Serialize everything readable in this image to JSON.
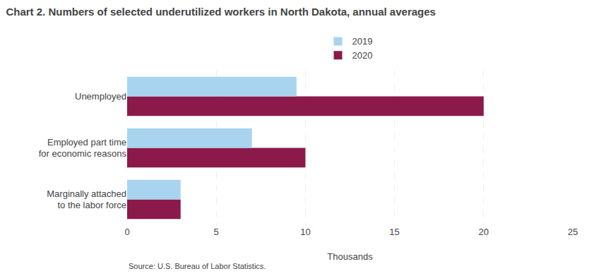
{
  "chart_data": {
    "type": "bar",
    "orientation": "horizontal",
    "title": "Chart 2. Numbers of selected underutilized workers in North Dakota, annual averages",
    "source": "Source: U.S. Bureau of Labor Statistics.",
    "categories": [
      "Marginally attached\nto the labor force",
      "Employed part time\nfor economic reasons",
      "Unemployed"
    ],
    "series": [
      {
        "name": "2019",
        "color": "#a8d4f0",
        "values": [
          3.0,
          7.0,
          9.5
        ]
      },
      {
        "name": "2020",
        "color": "#8b1a4a",
        "values": [
          3.0,
          10.0,
          20.0
        ]
      }
    ],
    "xlabel": "Thousands",
    "xlim": [
      0,
      25
    ],
    "xticks": [
      0,
      5,
      10,
      15,
      20,
      25
    ],
    "grid": true,
    "legend": "top"
  }
}
